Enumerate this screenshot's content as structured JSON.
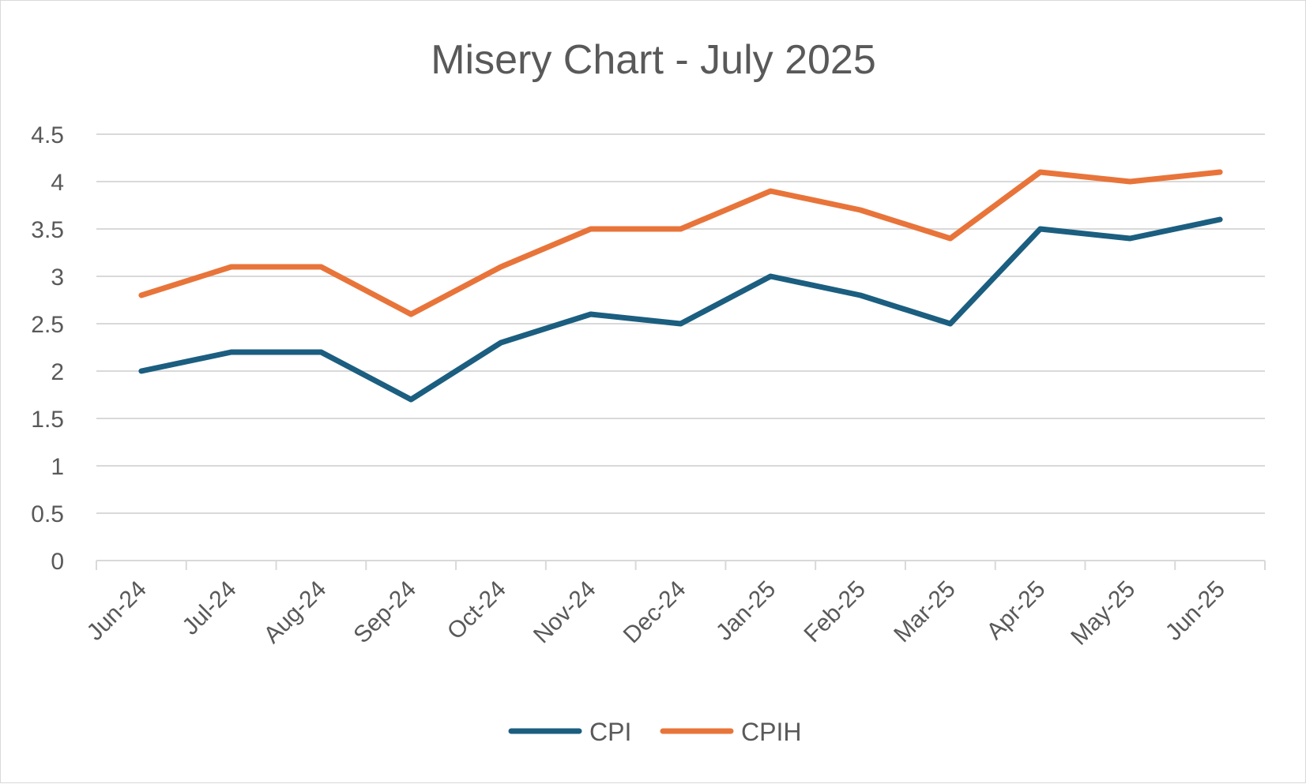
{
  "chart_data": {
    "type": "line",
    "title": "Misery Chart - July 2025",
    "xlabel": "",
    "ylabel": "",
    "categories": [
      "Jun-24",
      "Jul-24",
      "Aug-24",
      "Sep-24",
      "Oct-24",
      "Nov-24",
      "Dec-24",
      "Jan-25",
      "Feb-25",
      "Mar-25",
      "Apr-25",
      "May-25",
      "Jun-25"
    ],
    "y_ticks": [
      "0",
      "0.5",
      "1",
      "1.5",
      "2",
      "2.5",
      "3",
      "3.5",
      "4",
      "4.5"
    ],
    "ylim": [
      0,
      4.5
    ],
    "grid": true,
    "legend_position": "bottom",
    "series": [
      {
        "name": "CPI",
        "color": "#1b5e80",
        "values": [
          2.0,
          2.2,
          2.2,
          1.7,
          2.3,
          2.6,
          2.5,
          3.0,
          2.8,
          2.5,
          3.5,
          3.4,
          3.6
        ]
      },
      {
        "name": "CPIH",
        "color": "#e8743a",
        "values": [
          2.8,
          3.1,
          3.1,
          2.6,
          3.1,
          3.5,
          3.5,
          3.9,
          3.7,
          3.4,
          4.1,
          4.0,
          4.1
        ]
      }
    ]
  }
}
